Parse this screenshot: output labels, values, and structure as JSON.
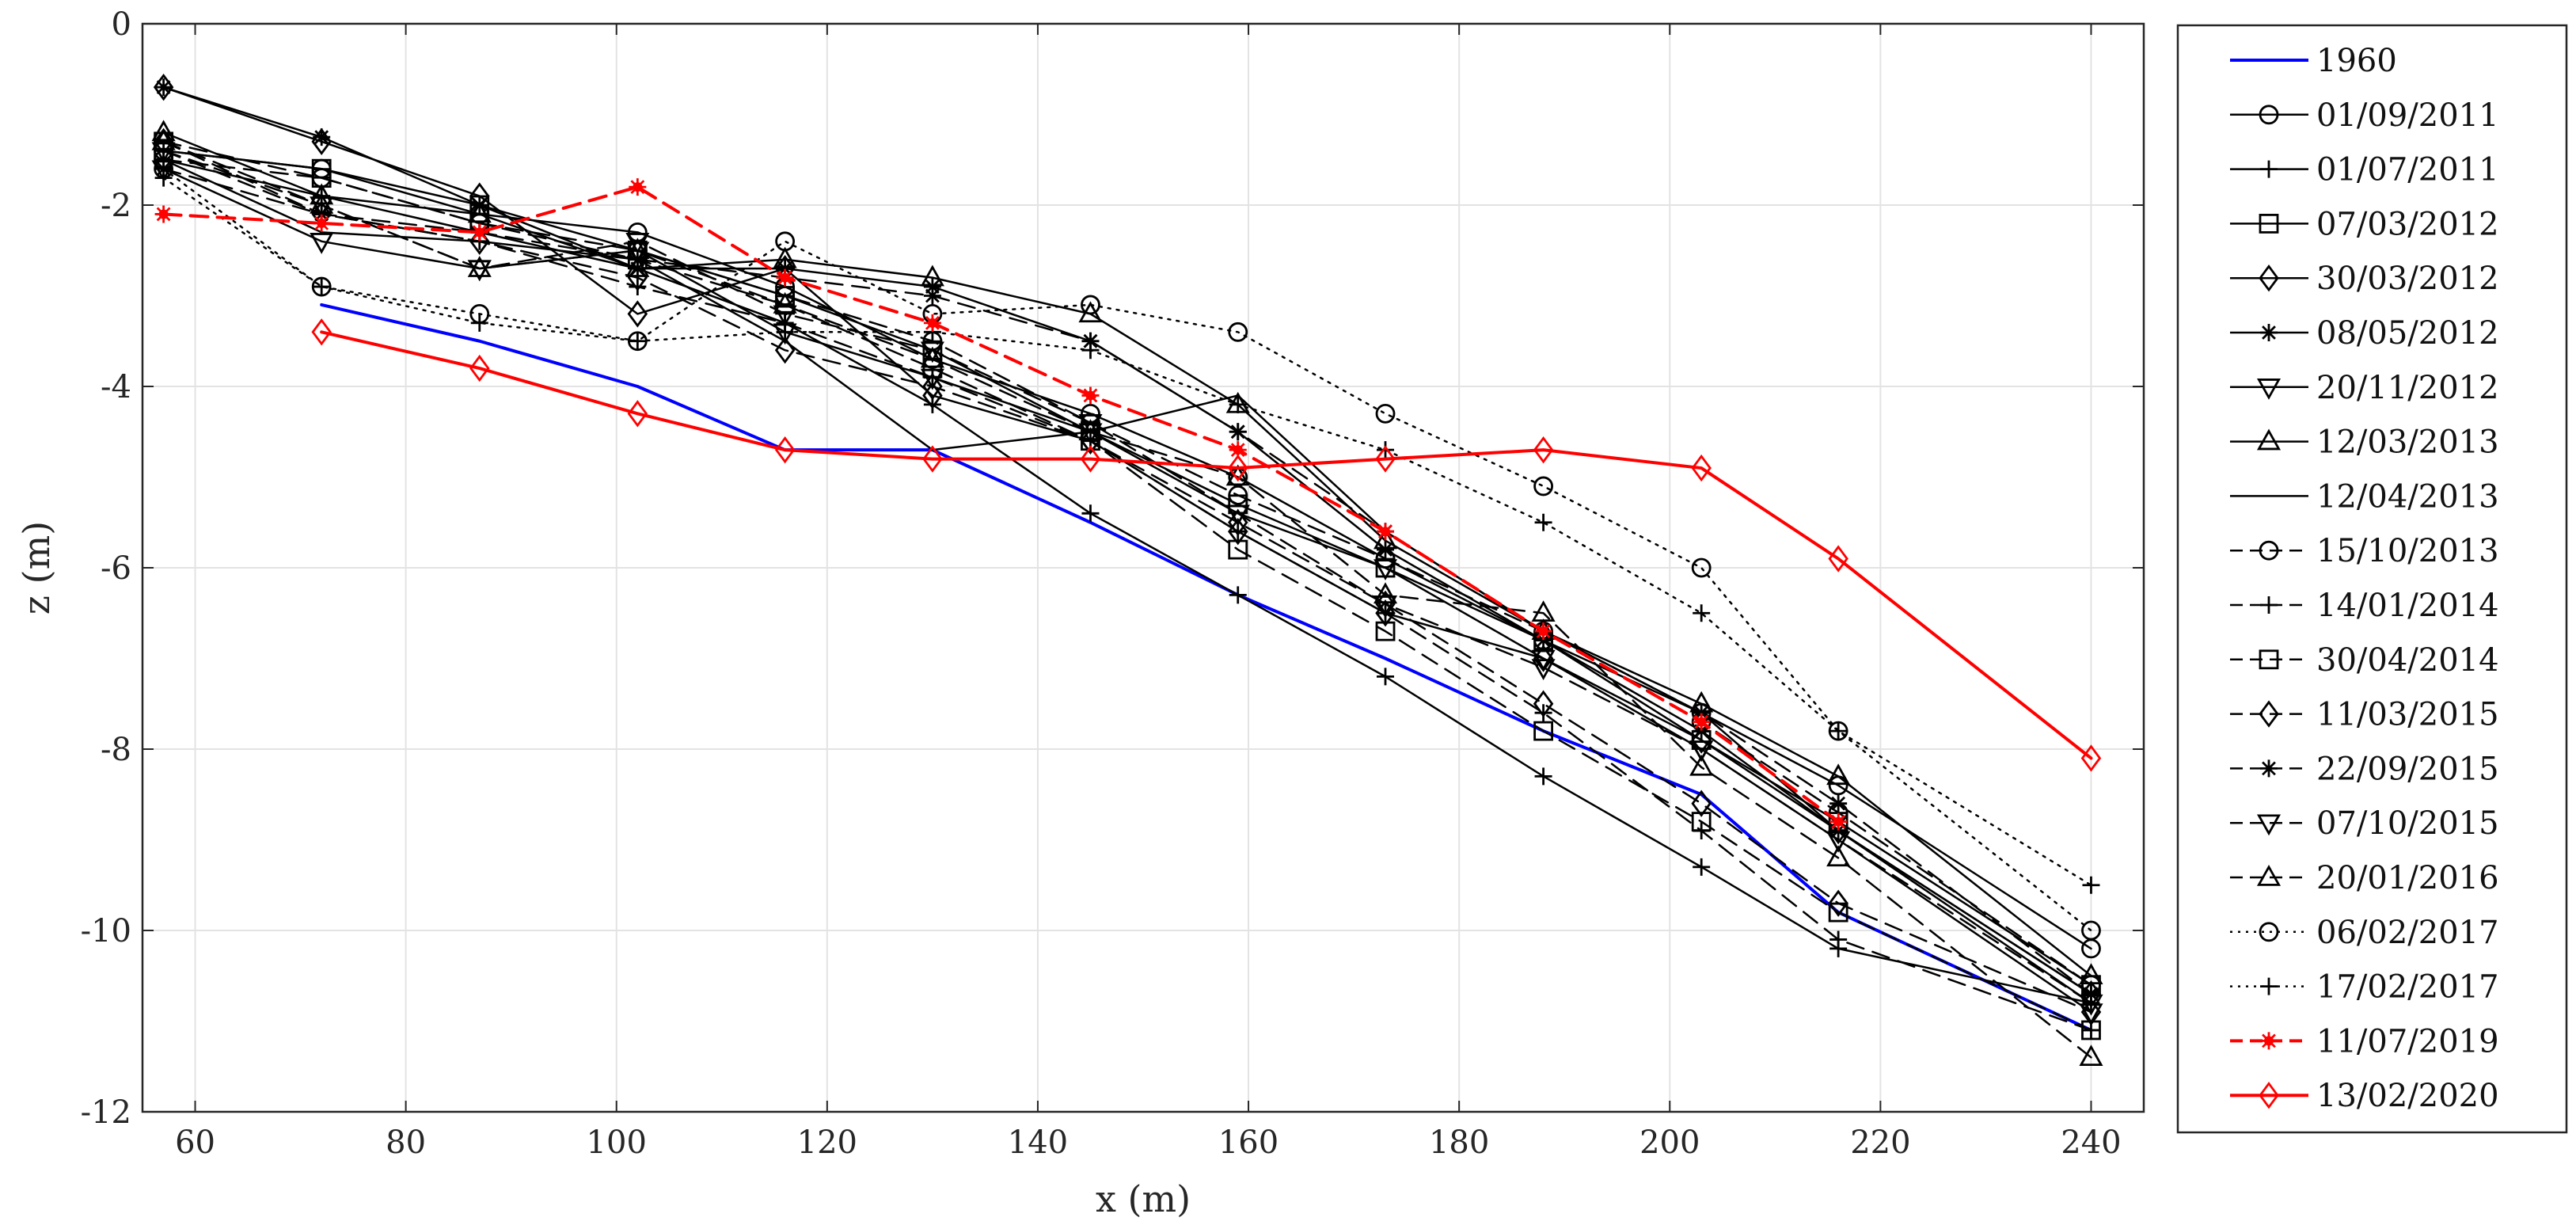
{
  "chart_data": {
    "type": "line",
    "title": "",
    "xlabel": "x (m)",
    "ylabel": "z (m)",
    "xlim": [
      55,
      245
    ],
    "ylim": [
      -12,
      0
    ],
    "xticks": [
      60,
      80,
      100,
      120,
      140,
      160,
      180,
      200,
      220,
      240
    ],
    "yticks": [
      0,
      -2,
      -4,
      -6,
      -8,
      -10,
      -12
    ],
    "grid": true,
    "legend_position": "outside-right",
    "series": [
      {
        "name": "1960",
        "color": "#0000ff",
        "dash": "solid",
        "marker": "none",
        "width": 4,
        "x": [
          72,
          87,
          102,
          116,
          130,
          145,
          159,
          173,
          188,
          203,
          216,
          240
        ],
        "y": [
          -3.1,
          -3.5,
          -4.0,
          -4.7,
          -4.7,
          -5.5,
          -6.3,
          -7.0,
          -7.8,
          -8.5,
          -9.8,
          -11.1
        ]
      },
      {
        "name": "01/09/2011",
        "color": "#000000",
        "dash": "solid",
        "marker": "circle",
        "width": 2.5,
        "x": [
          57,
          72,
          87,
          102,
          116,
          130,
          145,
          159,
          173,
          188,
          203,
          216,
          240
        ],
        "y": [
          -1.4,
          -1.6,
          -2.1,
          -2.3,
          -2.9,
          -3.7,
          -4.3,
          -5.0,
          -5.9,
          -6.8,
          -7.6,
          -8.4,
          -10.2
        ]
      },
      {
        "name": "01/07/2011",
        "color": "#000000",
        "dash": "solid",
        "marker": "plus",
        "width": 2.5,
        "x": [
          57,
          72,
          87,
          102,
          116,
          130,
          145,
          159,
          173,
          188,
          203,
          216,
          240
        ],
        "y": [
          -1.5,
          -1.9,
          -2.3,
          -2.7,
          -3.3,
          -4.2,
          -5.4,
          -6.3,
          -7.2,
          -8.3,
          -9.3,
          -10.2,
          -10.8
        ]
      },
      {
        "name": "07/03/2012",
        "color": "#000000",
        "dash": "solid",
        "marker": "square",
        "width": 2.5,
        "x": [
          57,
          72,
          87,
          102,
          116,
          130,
          145,
          159,
          173,
          188,
          203,
          216,
          240
        ],
        "y": [
          -1.4,
          -1.6,
          -2.0,
          -2.5,
          -3.0,
          -3.6,
          -4.5,
          -5.3,
          -6.0,
          -6.8,
          -7.9,
          -8.8,
          -10.6
        ]
      },
      {
        "name": "30/03/2012",
        "color": "#000000",
        "dash": "solid",
        "marker": "diamond",
        "width": 2.5,
        "x": [
          57,
          72,
          87,
          102,
          116,
          130,
          145,
          159,
          173,
          188,
          203,
          216,
          240
        ],
        "y": [
          -0.7,
          -1.3,
          -1.9,
          -3.2,
          -2.7,
          -4.1,
          -4.6,
          -5.6,
          -6.5,
          -7.0,
          -7.9,
          -8.9,
          -10.7
        ]
      },
      {
        "name": "08/05/2012",
        "color": "#000000",
        "dash": "solid",
        "marker": "asterisk",
        "width": 2.5,
        "x": [
          57,
          72,
          87,
          102,
          116,
          130,
          145,
          159,
          173,
          188,
          203,
          216,
          240
        ],
        "y": [
          -0.7,
          -1.25,
          -2.0,
          -2.7,
          -2.7,
          -2.9,
          -3.5,
          -4.5,
          -5.8,
          -6.8,
          -7.8,
          -8.9,
          -10.7
        ]
      },
      {
        "name": "20/11/2012",
        "color": "#000000",
        "dash": "solid",
        "marker": "triangle-down",
        "width": 2.5,
        "x": [
          57,
          72,
          87,
          102,
          116,
          130,
          145,
          159,
          173,
          188,
          203,
          216,
          240
        ],
        "y": [
          -1.6,
          -2.4,
          -2.7,
          -2.5,
          -3.4,
          -3.9,
          -4.5,
          -5.4,
          -6.0,
          -7.0,
          -8.0,
          -9.0,
          -10.9
        ]
      },
      {
        "name": "12/03/2013",
        "color": "#000000",
        "dash": "solid",
        "marker": "triangle-up",
        "width": 2.5,
        "x": [
          57,
          72,
          87,
          102,
          116,
          130,
          145,
          159,
          173,
          188,
          203,
          216,
          240
        ],
        "y": [
          -1.2,
          -1.9,
          -2.1,
          -2.7,
          -2.6,
          -2.8,
          -3.2,
          -4.2,
          -5.7,
          -6.7,
          -7.5,
          -8.3,
          -10.5
        ]
      },
      {
        "name": "12/04/2013",
        "color": "#000000",
        "dash": "solid",
        "marker": "none",
        "width": 2.5,
        "x": [
          57,
          72,
          87,
          102,
          116,
          130,
          145,
          159,
          173,
          188,
          203,
          216,
          240
        ],
        "y": [
          -1.5,
          -2.3,
          -2.4,
          -2.6,
          -3.5,
          -4.7,
          -4.5,
          -4.1,
          -5.6,
          -6.7,
          -7.6,
          -8.9,
          -10.8
        ]
      },
      {
        "name": "15/10/2013",
        "color": "#000000",
        "dash": "dashed",
        "marker": "circle",
        "width": 2.5,
        "x": [
          57,
          72,
          87,
          102,
          116,
          130,
          145,
          159,
          173,
          188,
          203,
          216,
          240
        ],
        "y": [
          -1.5,
          -1.7,
          -2.2,
          -2.5,
          -3.0,
          -3.5,
          -4.4,
          -5.2,
          -5.9,
          -6.7,
          -7.7,
          -8.7,
          -10.6
        ]
      },
      {
        "name": "14/01/2014",
        "color": "#000000",
        "dash": "dashed",
        "marker": "plus",
        "width": 2.5,
        "x": [
          57,
          72,
          87,
          102,
          116,
          130,
          145,
          159,
          173,
          188,
          203,
          216,
          240
        ],
        "y": [
          -1.4,
          -2.1,
          -2.4,
          -2.9,
          -3.3,
          -3.9,
          -4.6,
          -5.6,
          -6.5,
          -7.6,
          -8.9,
          -10.1,
          -11.1
        ]
      },
      {
        "name": "30/04/2014",
        "color": "#000000",
        "dash": "dashed",
        "marker": "square",
        "width": 2.5,
        "x": [
          57,
          72,
          87,
          102,
          116,
          130,
          145,
          159,
          173,
          188,
          203,
          216,
          240
        ],
        "y": [
          -1.3,
          -1.7,
          -2.2,
          -2.6,
          -3.1,
          -3.8,
          -4.6,
          -5.8,
          -6.7,
          -7.8,
          -8.8,
          -9.8,
          -11.1
        ]
      },
      {
        "name": "11/03/2015",
        "color": "#000000",
        "dash": "dashed",
        "marker": "diamond",
        "width": 2.5,
        "x": [
          57,
          72,
          87,
          102,
          116,
          130,
          145,
          159,
          173,
          188,
          203,
          216,
          240
        ],
        "y": [
          -1.3,
          -2.1,
          -2.4,
          -2.8,
          -3.6,
          -4.0,
          -4.6,
          -5.5,
          -6.4,
          -7.5,
          -8.6,
          -9.7,
          -10.9
        ]
      },
      {
        "name": "22/09/2015",
        "color": "#000000",
        "dash": "dashed",
        "marker": "asterisk",
        "width": 2.5,
        "x": [
          57,
          72,
          87,
          102,
          116,
          130,
          145,
          159,
          173,
          188,
          203,
          216,
          240
        ],
        "y": [
          -1.6,
          -2.1,
          -2.3,
          -2.6,
          -2.8,
          -3.0,
          -3.5,
          -4.5,
          -5.6,
          -6.7,
          -7.6,
          -8.6,
          -10.7
        ]
      },
      {
        "name": "07/10/2015",
        "color": "#000000",
        "dash": "dashed",
        "marker": "triangle-down",
        "width": 2.5,
        "x": [
          57,
          72,
          87,
          102,
          116,
          130,
          145,
          159,
          173,
          188,
          203,
          216,
          240
        ],
        "y": [
          -1.4,
          -2.0,
          -2.7,
          -2.4,
          -3.2,
          -3.6,
          -4.4,
          -5.4,
          -6.4,
          -7.1,
          -8.0,
          -9.0,
          -10.8
        ]
      },
      {
        "name": "20/01/2016",
        "color": "#000000",
        "dash": "dashed",
        "marker": "triangle-up",
        "width": 2.5,
        "x": [
          57,
          72,
          87,
          102,
          116,
          130,
          145,
          159,
          173,
          188,
          203,
          216,
          240
        ],
        "y": [
          -1.3,
          -2.0,
          -2.7,
          -2.5,
          -3.1,
          -3.7,
          -4.5,
          -5.0,
          -6.3,
          -6.5,
          -8.2,
          -9.2,
          -11.4
        ]
      },
      {
        "name": "06/02/2017",
        "color": "#000000",
        "dash": "dotted",
        "marker": "circle",
        "width": 2.5,
        "x": [
          57,
          72,
          87,
          102,
          116,
          130,
          145,
          159,
          173,
          188,
          203,
          216,
          240
        ],
        "y": [
          -1.6,
          -2.9,
          -3.2,
          -3.5,
          -2.4,
          -3.2,
          -3.1,
          -3.4,
          -4.3,
          -5.1,
          -6.0,
          -7.8,
          -10.0
        ]
      },
      {
        "name": "17/02/2017",
        "color": "#000000",
        "dash": "dotted",
        "marker": "plus",
        "width": 2.5,
        "x": [
          57,
          72,
          87,
          102,
          116,
          130,
          145,
          159,
          173,
          188,
          203,
          216,
          240
        ],
        "y": [
          -1.7,
          -2.9,
          -3.3,
          -3.5,
          -3.4,
          -3.4,
          -3.6,
          -4.2,
          -4.7,
          -5.5,
          -6.5,
          -7.8,
          -9.5
        ]
      },
      {
        "name": "11/07/2019",
        "color": "#ff0000",
        "dash": "dashed",
        "marker": "asterisk",
        "width": 4,
        "x": [
          57,
          72,
          87,
          102,
          116,
          130,
          145,
          159,
          173,
          188,
          203,
          216
        ],
        "y": [
          -2.1,
          -2.2,
          -2.3,
          -1.8,
          -2.8,
          -3.3,
          -4.1,
          -4.7,
          -5.6,
          -6.7,
          -7.7,
          -8.8
        ]
      },
      {
        "name": "13/02/2020",
        "color": "#ff0000",
        "dash": "solid",
        "marker": "diamond",
        "width": 4,
        "x": [
          72,
          87,
          102,
          116,
          130,
          145,
          159,
          173,
          188,
          203,
          216,
          240
        ],
        "y": [
          -3.4,
          -3.8,
          -4.3,
          -4.7,
          -4.8,
          -4.8,
          -4.9,
          -4.8,
          -4.7,
          -4.9,
          -5.9,
          -8.1
        ]
      }
    ]
  }
}
